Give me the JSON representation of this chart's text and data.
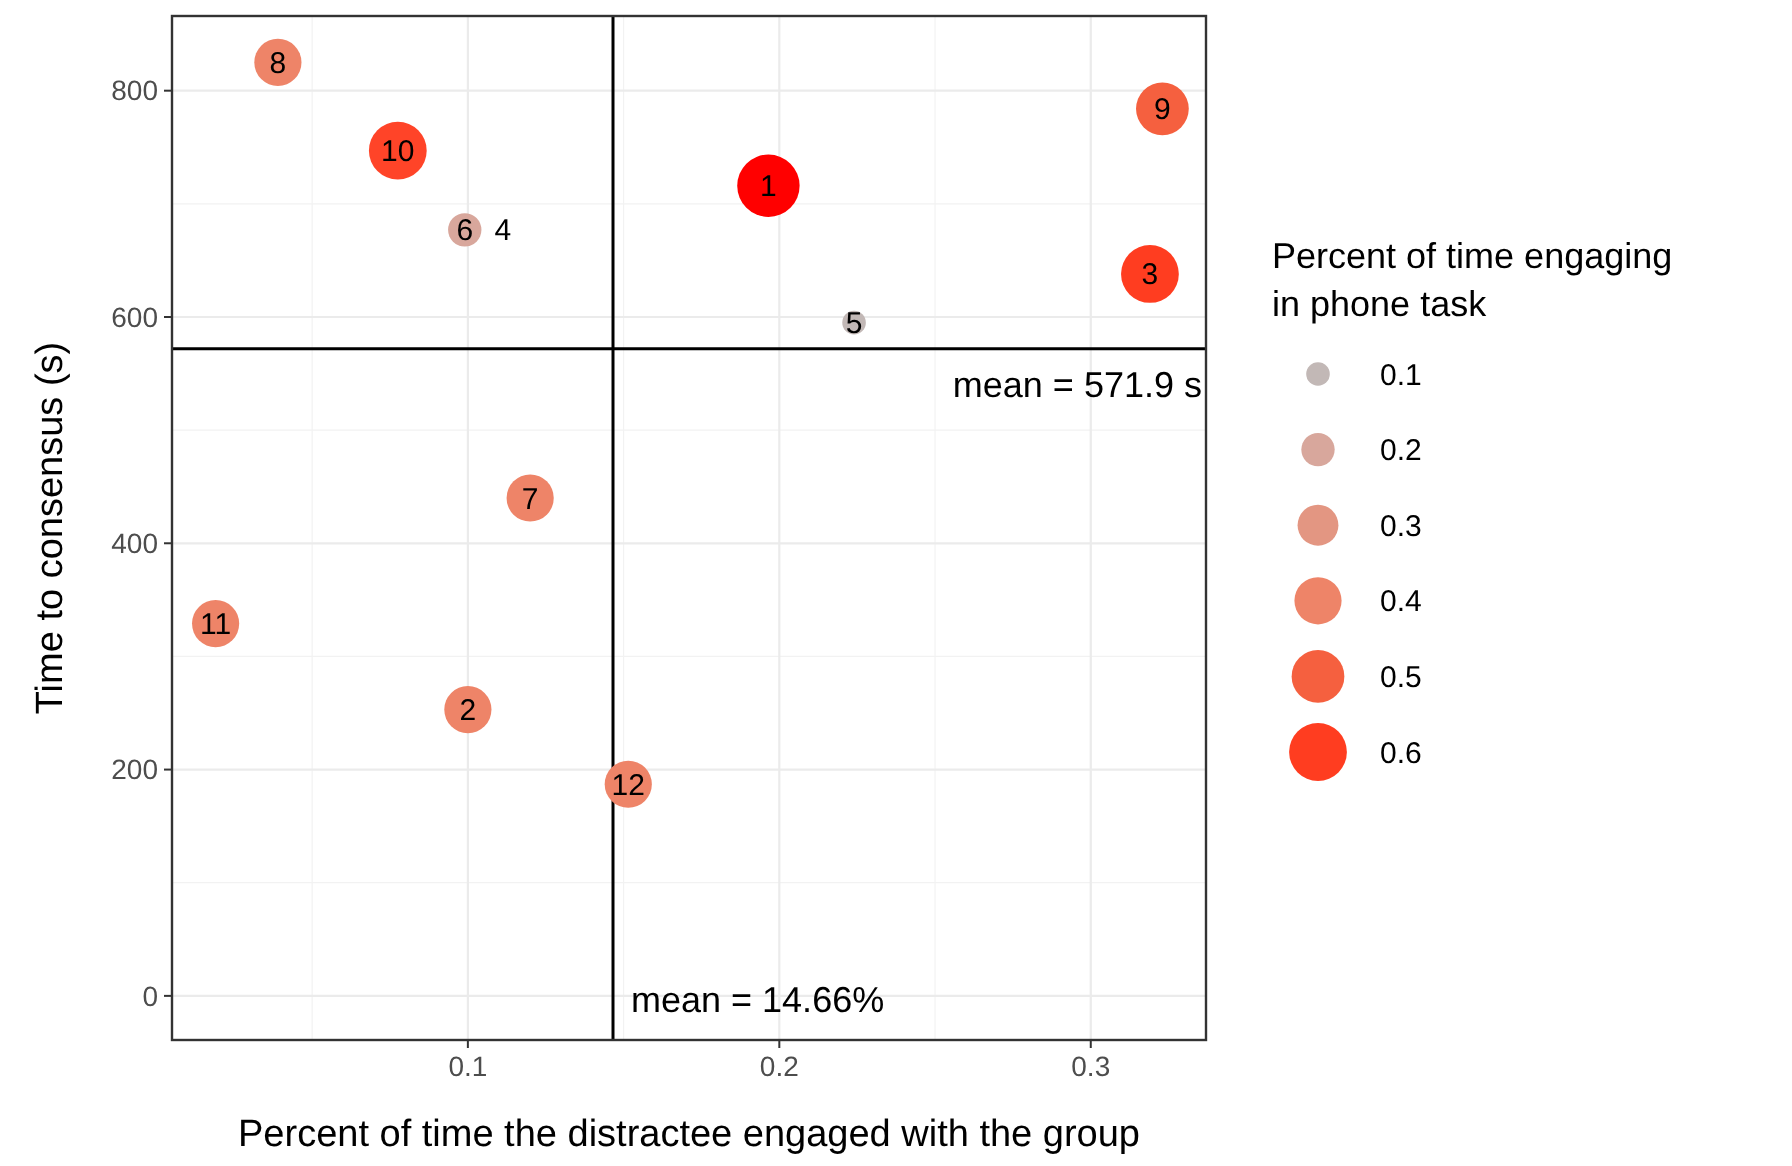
{
  "chart_data": {
    "type": "bubble",
    "xlabel": "Percent of time the distractee engaged with the group",
    "ylabel": "Time to consensus (s)",
    "legend_title": "Percent of time engaging in phone task",
    "x": [
      0.1965,
      0.1,
      0.319,
      0.224,
      0.099,
      0.12,
      0.039,
      0.323,
      0.0775,
      0.019,
      0.1515
    ],
    "values": [
      716,
      253,
      638,
      595,
      677,
      440,
      825,
      784,
      747,
      329,
      187
    ],
    "sizes": [
      0.7,
      0.4,
      0.6,
      0.1,
      0.2,
      0.4,
      0.4,
      0.5,
      0.6,
      0.4,
      0.4
    ],
    "colors": [
      "#ff0000",
      "#ee8468",
      "#ff3d20",
      "#c2b8b6",
      "#d8a79c",
      "#ee8468",
      "#ee8468",
      "#f5603f",
      "#ff4428",
      "#ee8468",
      "#ee8468"
    ],
    "size_legend": [
      0.1,
      0.2,
      0.3,
      0.4,
      0.5,
      0.6
    ],
    "annotations": [
      {
        "text": "1",
        "x": 0.1965,
        "y": 716
      },
      {
        "text": "2",
        "x": 0.1,
        "y": 253
      },
      {
        "text": "3",
        "x": 0.319,
        "y": 638
      },
      {
        "text": "5",
        "x": 0.224,
        "y": 595
      },
      {
        "text": "6",
        "x": 0.099,
        "y": 677
      },
      {
        "text": "4",
        "x": 0.099,
        "y": 677
      },
      {
        "text": "7",
        "x": 0.12,
        "y": 440
      },
      {
        "text": "8",
        "x": 0.039,
        "y": 825
      },
      {
        "text": "9",
        "x": 0.323,
        "y": 784
      },
      {
        "text": "10",
        "x": 0.0775,
        "y": 747
      },
      {
        "text": "11",
        "x": 0.019,
        "y": 329
      },
      {
        "text": "12",
        "x": 0.1515,
        "y": 187
      }
    ],
    "ref_lines": [
      {
        "axis": "y",
        "value": 571.9,
        "label": "mean = 571.9 s",
        "color": "#000000"
      },
      {
        "axis": "x",
        "value": 0.1466,
        "label": "mean = 14.66%",
        "color": "#000000"
      }
    ],
    "xlim": [
      0.005,
      0.337
    ],
    "xticks": [
      0.1,
      0.2,
      0.3
    ],
    "ylim": [
      -39,
      866
    ],
    "yticks": [
      0,
      200,
      400,
      600,
      800
    ],
    "grid": true,
    "legend": "right"
  }
}
